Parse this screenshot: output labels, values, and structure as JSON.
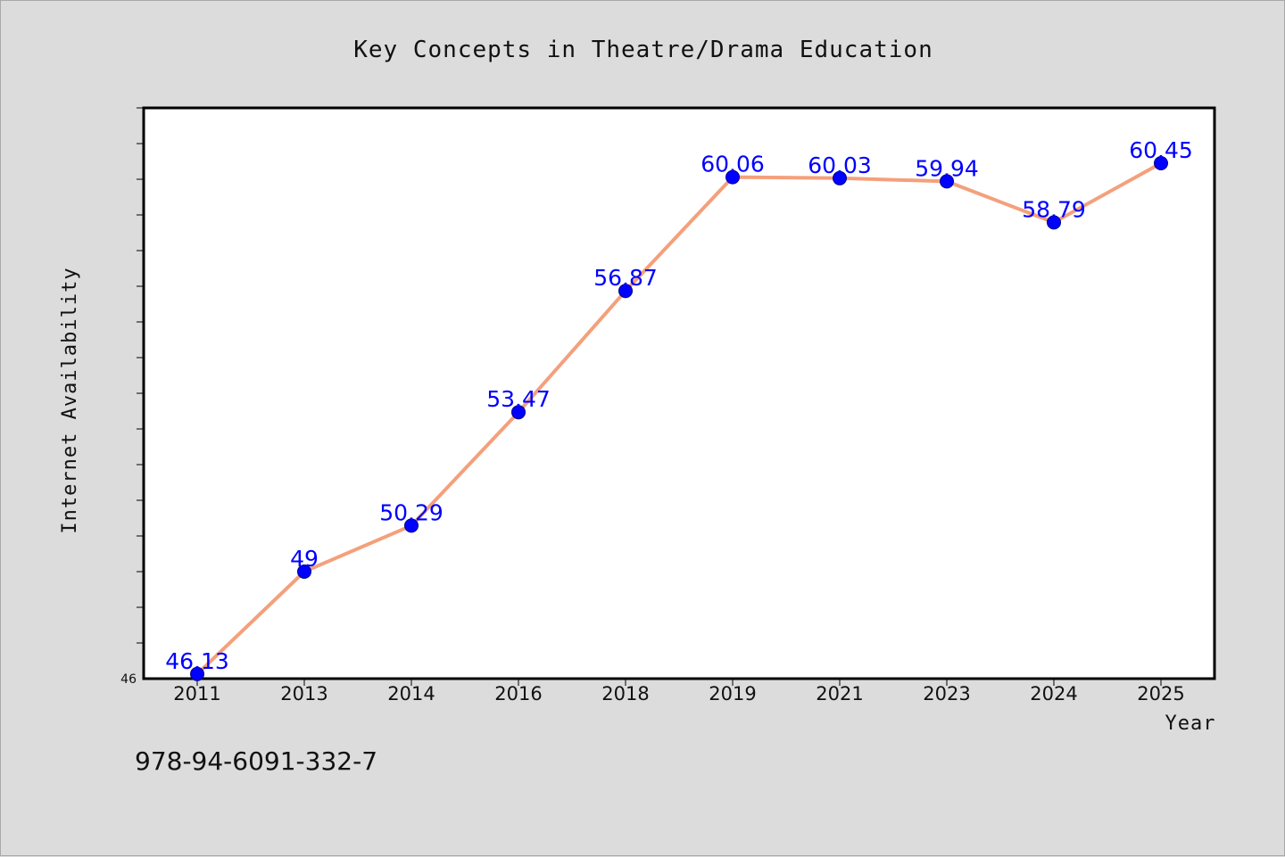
{
  "chart_data": {
    "type": "line",
    "title": "Key Concepts in Theatre/Drama Education",
    "xlabel": "Year",
    "ylabel": "Internet Availability",
    "categories": [
      "2011",
      "2013",
      "2014",
      "2016",
      "2018",
      "2019",
      "2021",
      "2023",
      "2024",
      "2025"
    ],
    "series": [
      {
        "values": [
          46.13,
          49,
          50.29,
          53.47,
          56.87,
          60.06,
          60.03,
          59.94,
          58.79,
          60.45
        ]
      }
    ],
    "data_labels": [
      "46.13",
      "49",
      "50.29",
      "53.47",
      "56.87",
      "60.06",
      "60.03",
      "59.94",
      "58.79",
      "60.45"
    ],
    "y_tick_labels": [
      "46"
    ],
    "ylim": [
      46,
      62
    ],
    "y_minor_tick_step": 1,
    "grid": false,
    "legend": "none",
    "colors": {
      "line": "#f4a07c",
      "marker": "#0000ff",
      "marker_edge": "#00008b",
      "data_label": "#0000ff",
      "plot_bg": "#ffffff",
      "page_bg": "#dcdcdc"
    }
  },
  "footer": {
    "isbn": "978-94-6091-332-7"
  }
}
